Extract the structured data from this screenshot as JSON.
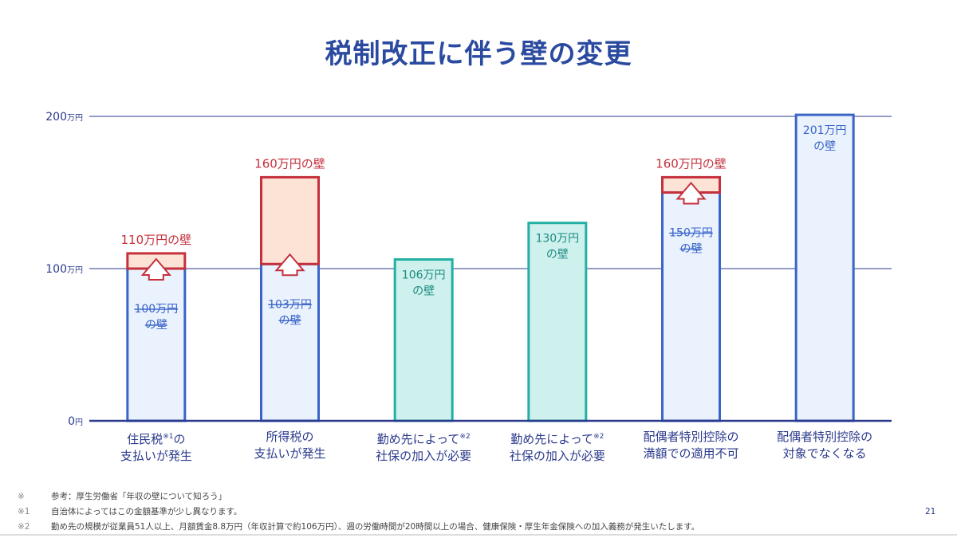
{
  "title": "税制改正に伴う壁の変更",
  "page_number": "21",
  "chart_data": {
    "type": "bar",
    "title": "税制改正に伴う壁の変更",
    "unit": "万円",
    "ylim": [
      0,
      200
    ],
    "yticks": [
      {
        "value": 0,
        "label": "0",
        "unit": "円"
      },
      {
        "value": 100,
        "label": "100",
        "unit": "万円"
      },
      {
        "value": 200,
        "label": "200",
        "unit": "万円"
      }
    ],
    "grid": true,
    "categories": [
      {
        "line1": "住民税",
        "sup": "※1",
        "line1b": "の",
        "line2": "支払いが発生"
      },
      {
        "line1": "所得税の",
        "sup": "",
        "line1b": "",
        "line2": "支払いが発生"
      },
      {
        "line1": "勤め先によって",
        "sup": "※2",
        "line1b": "",
        "line2": "社保の加入が必要"
      },
      {
        "line1": "勤め先によって",
        "sup": "※2",
        "line1b": "",
        "line2": "社保の加入が必要"
      },
      {
        "line1": "配偶者特別控除の",
        "sup": "",
        "line1b": "",
        "line2": "満額での適用不可"
      },
      {
        "line1": "配偶者特別控除の",
        "sup": "",
        "line1b": "",
        "line2": "対象でなくなる"
      }
    ],
    "bars": [
      {
        "style": "raise",
        "old_value": 100,
        "value": 110,
        "new_label": "110万円の壁",
        "old_label": [
          "100万円",
          "の壁"
        ]
      },
      {
        "style": "raise",
        "old_value": 103,
        "value": 160,
        "new_label": "160万円の壁",
        "old_label": [
          "103万円",
          "の壁"
        ]
      },
      {
        "style": "teal",
        "value": 106,
        "label": [
          "106万円",
          "の壁"
        ]
      },
      {
        "style": "teal",
        "value": 130,
        "label": [
          "130万円",
          "の壁"
        ]
      },
      {
        "style": "raise",
        "old_value": 150,
        "value": 160,
        "new_label": "160万円の壁",
        "old_label": [
          "150万円",
          "の壁"
        ]
      },
      {
        "style": "blue",
        "value": 201,
        "label": [
          "201万円",
          "の壁"
        ]
      }
    ]
  },
  "notes": [
    {
      "mark": "※",
      "text": "参考：厚生労働省「年収の壁について知ろう」"
    },
    {
      "mark": "※1",
      "text": "自治体によってはこの金額基準が少し異なります。"
    },
    {
      "mark": "※2",
      "text": "勤め先の規模が従業員51人以上、月額賃金8.8万円（年収計算で約106万円）、週の労働時間が20時間以上の場合、健康保険・厚生年金保険への加入義務が発生いたします。"
    }
  ],
  "colors": {
    "axis": "#2b3a8c",
    "blue_border": "#3a64c8",
    "blue_fill": "#eaf2fd",
    "red": "#c4303c",
    "red_fill": "#fde2d6",
    "teal": "#22b0a4",
    "teal_fill": "#cff1ed"
  }
}
